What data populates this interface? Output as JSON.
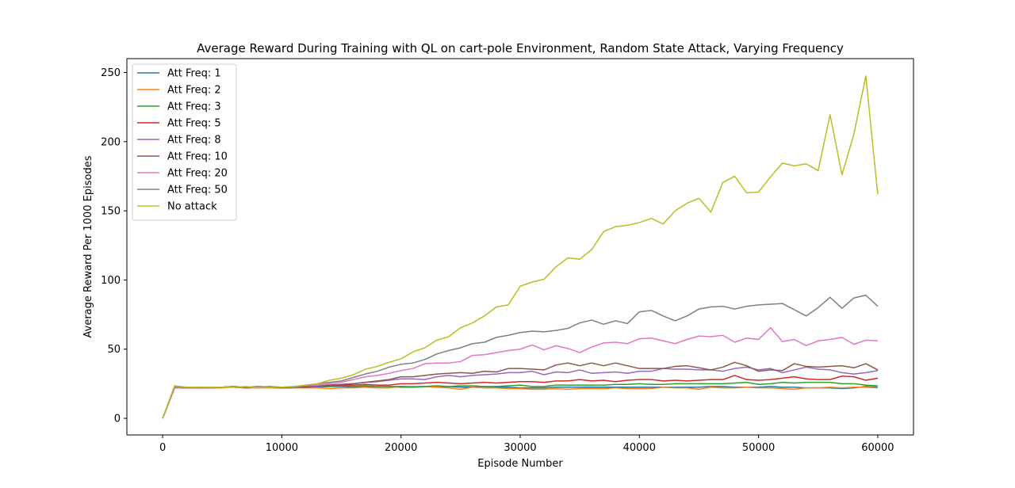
{
  "chart_data": {
    "type": "line",
    "title": "Average Reward During Training with QL on cart-pole Environment, Random State Attack, Varying Frequency",
    "xlabel": "Episode Number",
    "ylabel": "Average Reward Per 1000 Episodes",
    "xlim": [
      -3000,
      63000
    ],
    "ylim": [
      -12,
      260
    ],
    "xticks": [
      0,
      10000,
      20000,
      30000,
      40000,
      50000,
      60000
    ],
    "yticks": [
      0,
      50,
      100,
      150,
      200,
      250
    ],
    "grid": false,
    "legend_position": "upper-left",
    "x": [
      0,
      1000,
      2000,
      3000,
      4000,
      5000,
      6000,
      7000,
      8000,
      9000,
      10000,
      11000,
      12000,
      13000,
      14000,
      15000,
      16000,
      17000,
      18000,
      19000,
      20000,
      21000,
      22000,
      23000,
      24000,
      25000,
      26000,
      27000,
      28000,
      29000,
      30000,
      31000,
      32000,
      33000,
      34000,
      35000,
      36000,
      37000,
      38000,
      39000,
      40000,
      41000,
      42000,
      43000,
      44000,
      45000,
      46000,
      47000,
      48000,
      49000,
      50000,
      51000,
      52000,
      53000,
      54000,
      55000,
      56000,
      57000,
      58000,
      59000,
      60000
    ],
    "series": [
      {
        "name": "Att Freq: 1",
        "color": "#1f77b4",
        "values": [
          0,
          22,
          22,
          22.5,
          22,
          22.5,
          23,
          22,
          22.5,
          23,
          22,
          22,
          22.5,
          22.5,
          23,
          23,
          22.5,
          23,
          23,
          23,
          22.5,
          22.5,
          23,
          22.5,
          23,
          22.5,
          22.5,
          23,
          22.5,
          22.5,
          22,
          22,
          22,
          22.5,
          22.5,
          22.5,
          22.5,
          22.5,
          22.5,
          22.5,
          22.5,
          22.5,
          22.5,
          22.5,
          22.5,
          22.5,
          23,
          23,
          22.5,
          22.5,
          22.5,
          23,
          22.5,
          22.5,
          22,
          22,
          22,
          21.5,
          22,
          23,
          22.5
        ]
      },
      {
        "name": "Att Freq: 2",
        "color": "#ff7f0e",
        "values": [
          0,
          22,
          22,
          22,
          22,
          22,
          22.5,
          22,
          22,
          22,
          22,
          22,
          22,
          22,
          21.5,
          22,
          22,
          22.5,
          22,
          22,
          23,
          23,
          23,
          22.5,
          22,
          21,
          22.5,
          22,
          22,
          21.5,
          21.5,
          21,
          21,
          21.5,
          21,
          21.5,
          21.5,
          21.5,
          22,
          21.5,
          21.5,
          21.5,
          22.5,
          22,
          22,
          21,
          22.5,
          22,
          22,
          22.5,
          22,
          22,
          21.5,
          21,
          22,
          22,
          22.5,
          22,
          22.5,
          22.5,
          22
        ]
      },
      {
        "name": "Att Freq: 3",
        "color": "#2ca02c",
        "values": [
          0,
          22,
          22,
          22.5,
          22,
          22.5,
          23,
          22.5,
          23,
          22.5,
          22,
          22.5,
          22.5,
          23,
          23,
          23.5,
          23,
          23.5,
          23,
          23,
          23,
          22.5,
          23,
          23.5,
          23,
          23.5,
          23.5,
          23,
          23,
          23.5,
          24,
          23,
          23,
          24,
          24,
          24,
          24,
          24,
          24.5,
          24.5,
          25,
          24.5,
          24.5,
          25,
          25,
          25,
          25,
          25,
          25.5,
          26,
          24.5,
          25,
          26,
          25.5,
          26,
          26,
          26,
          25,
          25,
          24,
          23.5
        ]
      },
      {
        "name": "Att Freq: 5",
        "color": "#d62728",
        "values": [
          0,
          22,
          22,
          22,
          22,
          22.5,
          22.5,
          22,
          22.5,
          22.5,
          22.5,
          22.5,
          22.5,
          23,
          23.5,
          24,
          24,
          24.5,
          24,
          24,
          25,
          25,
          25.5,
          26,
          25.5,
          25,
          25.5,
          26,
          25.5,
          26,
          26.5,
          26.5,
          26,
          27,
          27,
          28,
          27,
          27.5,
          26.5,
          27.5,
          28,
          28,
          27,
          27.5,
          27,
          27.5,
          28,
          28,
          31,
          28,
          27.5,
          28,
          29,
          30,
          28.5,
          28,
          28,
          30.5,
          30,
          27.5,
          29
        ]
      },
      {
        "name": "Att Freq: 8",
        "color": "#9467bd",
        "values": [
          0,
          22,
          22,
          22,
          22,
          22.5,
          22.5,
          22,
          22.5,
          22.5,
          22.5,
          22.5,
          23,
          23,
          24,
          24.5,
          25,
          26,
          26.5,
          27.5,
          28.5,
          28.5,
          28,
          30,
          31,
          30,
          31,
          31.5,
          32,
          33,
          33,
          34,
          31.5,
          33.5,
          33,
          35,
          32.5,
          33,
          33.5,
          32.5,
          34,
          34,
          36,
          35.5,
          35.5,
          35,
          35,
          34,
          36,
          37,
          35,
          36,
          33,
          35,
          37,
          35.5,
          35,
          33,
          32,
          33,
          34.5
        ]
      },
      {
        "name": "Att Freq: 10",
        "color": "#8c564b",
        "values": [
          0,
          22,
          22,
          22.5,
          22,
          22.5,
          22.5,
          22.5,
          22.5,
          22.5,
          22,
          22.5,
          23,
          23.5,
          24,
          24.5,
          25,
          26,
          27,
          28,
          30,
          30,
          31,
          32,
          32.5,
          33,
          32.5,
          34,
          33.5,
          36,
          36,
          35.5,
          35,
          38.5,
          40,
          38,
          40,
          38,
          40,
          38,
          36,
          36,
          36,
          37.5,
          38,
          36.5,
          35,
          37,
          40.5,
          38,
          34,
          35,
          34.5,
          39.5,
          37.5,
          37,
          37.5,
          38,
          36.5,
          39.5,
          35
        ]
      },
      {
        "name": "Att Freq: 20",
        "color": "#e377c2",
        "values": [
          0,
          22,
          22,
          22.5,
          22,
          22.5,
          22.5,
          22.5,
          22.5,
          22.5,
          22.5,
          23,
          23.5,
          24,
          25,
          26,
          28,
          30,
          31,
          32.5,
          34.5,
          36,
          39.5,
          40,
          40,
          41,
          45.5,
          46,
          47.5,
          49,
          50,
          53,
          49.5,
          52.5,
          50.5,
          47.5,
          51.5,
          54.5,
          55,
          54,
          57.5,
          58,
          56,
          54,
          57,
          59.5,
          59,
          60,
          55,
          58,
          57,
          65.5,
          55.5,
          57,
          52.5,
          56,
          57,
          58.5,
          53.5,
          56.5,
          56
        ]
      },
      {
        "name": "Att Freq: 50",
        "color": "#7f7f7f",
        "values": [
          0,
          23,
          22,
          22.5,
          22,
          22.5,
          23,
          22.5,
          22,
          23,
          22.5,
          22.5,
          23.5,
          25,
          26,
          27,
          29.5,
          32,
          34,
          37,
          39,
          40,
          42.5,
          46.5,
          49,
          51,
          54,
          55,
          58.5,
          60,
          62,
          63,
          62.5,
          63.5,
          65,
          69,
          71,
          68,
          70.5,
          68.5,
          77,
          78,
          74,
          70.5,
          74,
          79,
          80.5,
          81,
          79,
          81,
          82,
          82.5,
          83,
          78.5,
          74,
          80,
          87.5,
          79.5,
          87,
          89,
          81
        ]
      },
      {
        "name": "No attack",
        "color": "#bcbd22",
        "values": [
          0,
          23.5,
          22.5,
          22.5,
          22.5,
          22.5,
          22.5,
          23,
          22,
          22.5,
          22.5,
          23,
          24,
          25,
          27.5,
          29,
          31.5,
          35.5,
          37.5,
          40.5,
          43,
          48,
          51,
          56.5,
          59,
          65.5,
          69,
          74,
          80.5,
          82,
          95.5,
          98.5,
          100.5,
          109.5,
          116,
          115,
          122,
          135,
          138.5,
          139.5,
          141.5,
          144.5,
          140.5,
          150,
          155.5,
          159,
          149,
          170.5,
          175,
          163,
          163.5,
          174.5,
          184.5,
          182.5,
          184,
          179,
          219.5,
          176,
          205.5,
          247.5,
          162
        ]
      }
    ]
  }
}
